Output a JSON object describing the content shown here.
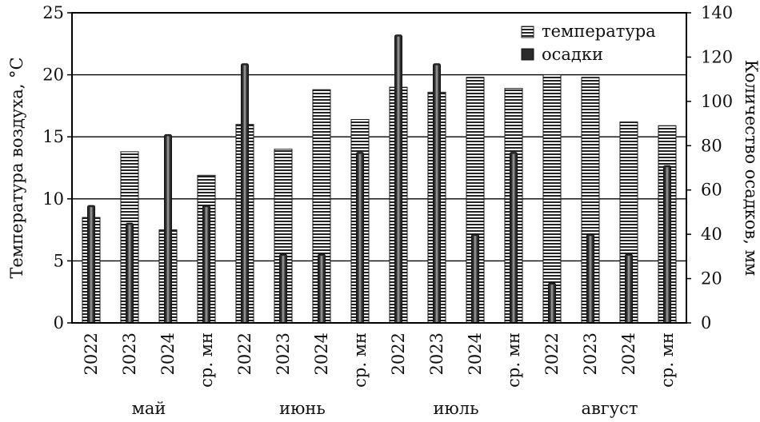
{
  "chart_data": {
    "type": "bar",
    "ylabel": "Температура воздуха, °C",
    "y2label": "Количество осадков, мм",
    "ylim": [
      0,
      25
    ],
    "y2lim": [
      0,
      140
    ],
    "yticks": [
      0,
      5,
      10,
      15,
      20,
      25
    ],
    "y2ticks": [
      0,
      20,
      40,
      60,
      80,
      100,
      120,
      140
    ],
    "grid": "horizontal",
    "legend_position": "top-right",
    "categories": [
      "2022",
      "2023",
      "2024",
      "ср. мн",
      "2022",
      "2023",
      "2024",
      "ср. мн",
      "2022",
      "2023",
      "2024",
      "ср. мн",
      "2022",
      "2023",
      "2024",
      "ср. мн"
    ],
    "groups": [
      {
        "label": "май"
      },
      {
        "label": "июнь"
      },
      {
        "label": "июль"
      },
      {
        "label": "август"
      }
    ],
    "series": [
      {
        "name": "температура",
        "axis": "left",
        "pattern": "horizontal-stripes",
        "values": [
          8.5,
          13.8,
          7.5,
          11.9,
          16.0,
          14.0,
          18.8,
          16.4,
          19.0,
          18.6,
          19.8,
          18.9,
          20.0,
          19.8,
          16.2,
          15.9
        ]
      },
      {
        "name": "осадки",
        "axis": "right",
        "pattern": "dark",
        "values": [
          53,
          45,
          85,
          53,
          117,
          31,
          31,
          77,
          130,
          117,
          40,
          77,
          18,
          40,
          31,
          71
        ]
      }
    ]
  },
  "colors": {
    "axis": "#000000",
    "temperature_fill": "#ffffff",
    "temperature_stripe": "#222222",
    "precip_fill": "#2b2b2b",
    "precip_highlight": "#8c8c8c"
  }
}
